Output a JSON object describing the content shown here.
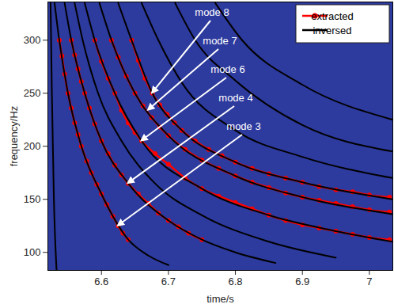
{
  "chart_data": {
    "type": "line",
    "xlabel": "time/s",
    "ylabel": "frequency/Hz",
    "xlim": [
      6.52,
      7.035
    ],
    "ylim": [
      83,
      336
    ],
    "xticks": [
      6.6,
      6.7,
      6.8,
      6.9,
      7
    ],
    "yticks": [
      100,
      150,
      200,
      250,
      300
    ],
    "legend": "upper right",
    "series": [
      {
        "name": "extracted",
        "color": "#ff0000",
        "marker": "circle",
        "line_style": "solid",
        "curves": [
          {
            "x": [
              6.537,
              6.541,
              6.545,
              6.55,
              6.555,
              6.56,
              6.565,
              6.57,
              6.578,
              6.585,
              6.593,
              6.6,
              6.608,
              6.617,
              6.625,
              6.632,
              6.64
            ],
            "y": [
              300,
              285,
              268,
              250,
              236,
              222,
              211,
              200,
              186,
              175,
              164,
              155,
              145,
              134,
              125,
              118,
              112
            ]
          },
          {
            "x": [
              6.555,
              6.56,
              6.565,
              6.57,
              6.575,
              6.582,
              6.59,
              6.6,
              6.61,
              6.62,
              6.63,
              6.64,
              6.655,
              6.67,
              6.685,
              6.7,
              6.715,
              6.73,
              6.75
            ],
            "y": [
              300,
              286,
              273,
              261,
              250,
              236,
              221,
              205,
              193,
              182,
              173,
              165,
              155,
              146,
              137,
              130,
              124,
              118,
              112
            ]
          },
          {
            "x": [
              6.59,
              6.6,
              6.61,
              6.62,
              6.63,
              6.64,
              6.65,
              6.66,
              6.68,
              6.7,
              6.725,
              6.75,
              6.775,
              6.8,
              6.825,
              6.85,
              6.875,
              6.9,
              6.925,
              6.95,
              6.975,
              7.0,
              7.03
            ],
            "y": [
              300,
              280,
              264,
              250,
              234,
              222,
              213,
              205,
              193,
              183,
              170,
              160,
              153,
              147,
              141,
              135,
              130,
              126,
              123,
              120,
              117,
              114,
              112
            ]
          },
          {
            "x": [
              6.615,
              6.625,
              6.637,
              6.65,
              6.662,
              6.675,
              6.687,
              6.7,
              6.725,
              6.75,
              6.775,
              6.8,
              6.825,
              6.85,
              6.875,
              6.9,
              6.925,
              6.95,
              6.975,
              7.0,
              7.03
            ],
            "y": [
              300,
              284,
              266,
              250,
              238,
              227,
              218,
              210,
              197,
              187,
              179,
              172,
              166,
              161,
              156,
              152,
              149,
              146,
              143,
              140,
              138
            ]
          },
          {
            "x": [
              6.645,
              6.655,
              6.665,
              6.676,
              6.687,
              6.698,
              6.709,
              6.72,
              6.74,
              6.76,
              6.78,
              6.8,
              6.825,
              6.85,
              6.875,
              6.9,
              6.925,
              6.95,
              6.975,
              7.0,
              7.03
            ],
            "y": [
              300,
              281,
              264,
              250,
              239,
              230,
              222,
              215,
              205,
              197,
              191,
              185,
              179,
              174,
              170,
              166,
              162,
              159,
              157,
              154,
              152
            ]
          }
        ]
      },
      {
        "name": "inversed",
        "color": "#000000",
        "line_style": "solid",
        "curves": [
          {
            "x": [
              6.524,
              6.526,
              6.529,
              6.533
            ],
            "y": [
              335,
              250,
              150,
              83
            ]
          },
          {
            "x": [
              6.53,
              6.537,
              6.55,
              6.57,
              6.6,
              6.64,
              6.67,
              6.7
            ],
            "y": [
              335,
              300,
              250,
              200,
              155,
              112,
              97,
              88
            ]
          },
          {
            "x": [
              6.545,
              6.555,
              6.575,
              6.6,
              6.64,
              6.7,
              6.75,
              6.8,
              6.86
            ],
            "y": [
              335,
              300,
              250,
              205,
              165,
              130,
              112,
              100,
              90
            ]
          },
          {
            "x": [
              6.56,
              6.572,
              6.595,
              6.63,
              6.68,
              6.75,
              6.85,
              6.95
            ],
            "y": [
              335,
              300,
              250,
              205,
              165,
              135,
              110,
              95
            ]
          },
          {
            "x": [
              6.575,
              6.59,
              6.62,
              6.66,
              6.75,
              6.85,
              6.95,
              7.035
            ],
            "y": [
              335,
              300,
              250,
              205,
              160,
              135,
              120,
              110
            ]
          },
          {
            "x": [
              6.597,
              6.615,
              6.65,
              6.7,
              6.8,
              6.9,
              7.035
            ],
            "y": [
              335,
              300,
              250,
              210,
              172,
              152,
              136
            ]
          },
          {
            "x": [
              6.625,
              6.645,
              6.676,
              6.72,
              6.8,
              6.9,
              7.035
            ],
            "y": [
              335,
              300,
              250,
              215,
              185,
              166,
              150
            ]
          },
          {
            "x": [
              6.66,
              6.685,
              6.72,
              6.8,
              6.9,
              7.035
            ],
            "y": [
              335,
              300,
              260,
              215,
              190,
              170
            ]
          },
          {
            "x": [
              6.71,
              6.74,
              6.8,
              6.9,
              7.035
            ],
            "y": [
              335,
              300,
              262,
              220,
              195
            ]
          },
          {
            "x": [
              6.77,
              6.81,
              6.9,
              7.035
            ],
            "y": [
              335,
              300,
              258,
              225
            ]
          }
        ]
      }
    ],
    "annotations": [
      {
        "text": "mode 8",
        "x": 6.676,
        "y": 250
      },
      {
        "text": "mode 7",
        "x": 6.67,
        "y": 234
      },
      {
        "text": "mode 6",
        "x": 6.66,
        "y": 205
      },
      {
        "text": "mode 4",
        "x": 6.64,
        "y": 165
      },
      {
        "text": "mode 3",
        "x": 6.625,
        "y": 125
      }
    ]
  }
}
